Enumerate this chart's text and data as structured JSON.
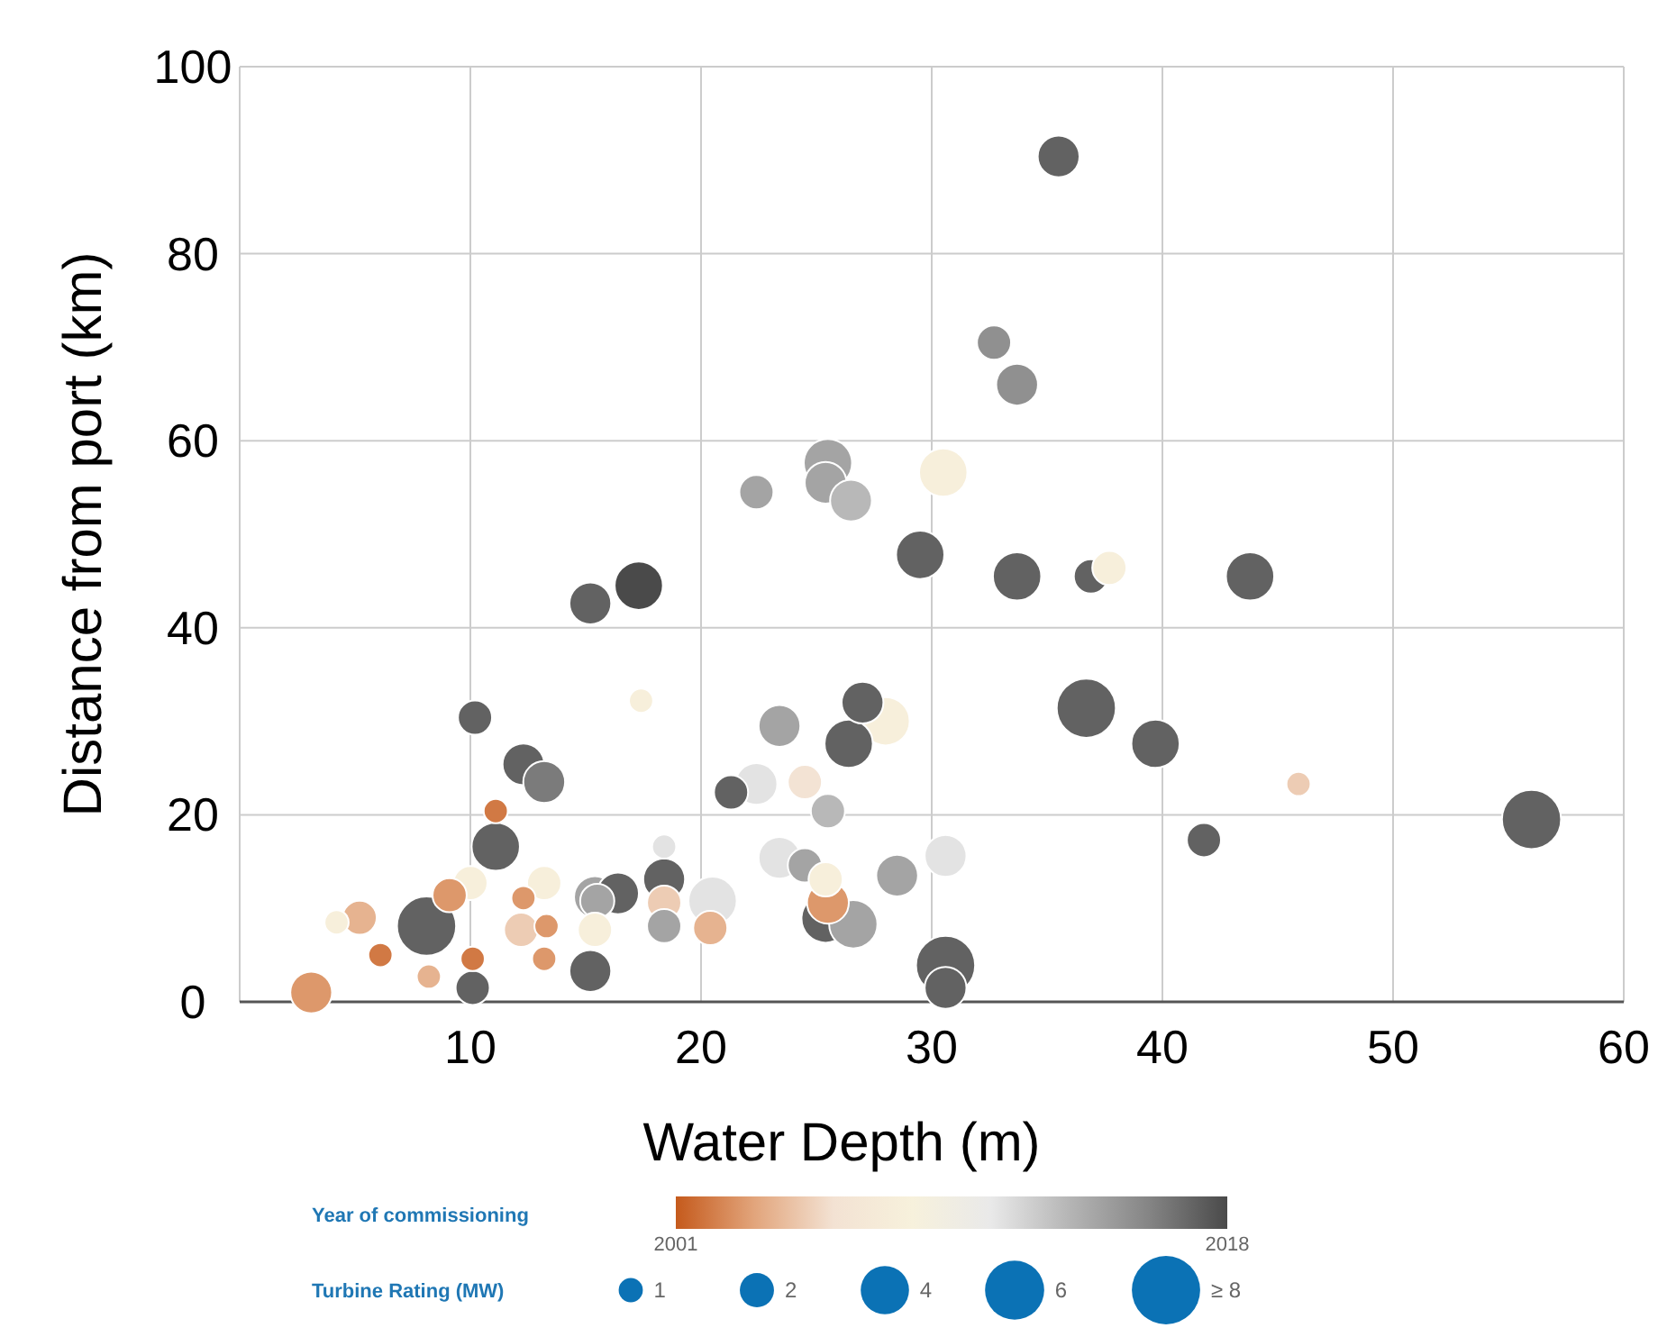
{
  "chart_data": {
    "type": "bubble",
    "xlabel": "Water Depth (m)",
    "ylabel": "Distance from port (km)",
    "clabel": "Year of commissioning",
    "legend_title": "Turbine Rating (MW)",
    "xlim": [
      0,
      60
    ],
    "xticks": [
      {
        "value": 0,
        "label": null
      },
      10,
      20,
      30,
      40,
      50,
      60
    ],
    "ylim": [
      0,
      100
    ],
    "yticks": [
      0,
      20,
      40,
      60,
      80,
      100
    ],
    "grid": true,
    "clim": [
      2001,
      2018
    ],
    "cticks": [
      2001,
      2018
    ],
    "size_legend": [
      1,
      2,
      4,
      6,
      {
        "value": 8,
        "label": "≥ 8"
      }
    ],
    "x": [
      35.5,
      32.7,
      33.7,
      25.5,
      25.4,
      22.4,
      26.5,
      30.5,
      29.5,
      33.7,
      36.9,
      37.7,
      43.8,
      17.3,
      15.2,
      17.4,
      10.2,
      12.3,
      13.2,
      11.1,
      11.1,
      10.0,
      9.1,
      4.2,
      5.2,
      8.1,
      6.1,
      8.2,
      10.1,
      10.1,
      3.1,
      13.2,
      12.3,
      13.3,
      12.2,
      13.2,
      15.5,
      15.4,
      15.2,
      23.4,
      28.0,
      26.4,
      27.0,
      21.3,
      22.4,
      24.5,
      25.5,
      18.4,
      23.4,
      24.5,
      28.5,
      30.6,
      16.4,
      18.4,
      18.4,
      18.4,
      20.5,
      20.4,
      15.4,
      25.4,
      25.5,
      25.4,
      26.6,
      30.6,
      30.6,
      36.7,
      39.7,
      45.9,
      41.8,
      56.0
    ],
    "values": [
      90.4,
      70.5,
      66,
      57.6,
      55.5,
      54.5,
      53.6,
      56.6,
      47.8,
      45.5,
      45.5,
      46.4,
      45.5,
      44.5,
      42.6,
      32.2,
      30.4,
      25.4,
      23.5,
      20.4,
      16.6,
      12.7,
      11.4,
      8.5,
      9.0,
      8.1,
      5.0,
      2.7,
      4.6,
      1.5,
      1.0,
      12.7,
      11.1,
      8.1,
      7.7,
      4.6,
      10.8,
      11.2,
      3.3,
      29.5,
      30.0,
      27.6,
      32.0,
      22.4,
      23.3,
      23.5,
      20.4,
      16.6,
      15.4,
      14.6,
      13.5,
      15.6,
      11.6,
      13.1,
      10.6,
      8.1,
      10.8,
      7.9,
      7.7,
      13.1,
      10.6,
      8.9,
      8.3,
      3.9,
      1.5,
      31.4,
      27.6,
      23.3,
      17.3,
      19.5
    ],
    "sizes": [
      3,
      2,
      3,
      4,
      3,
      2,
      3,
      4,
      4,
      4,
      2,
      2,
      4,
      4,
      3,
      1,
      2,
      3,
      3,
      1,
      4,
      2,
      2,
      1,
      2,
      6,
      1,
      1,
      1,
      2,
      3,
      2,
      1,
      1,
      2,
      1,
      2,
      3,
      3,
      3,
      4,
      4,
      3,
      2,
      3,
      2,
      2,
      1,
      3,
      2,
      3,
      3,
      3,
      3,
      2,
      2,
      4,
      2,
      2,
      2,
      3,
      4,
      4,
      6,
      3,
      6,
      4,
      1,
      2,
      6
    ],
    "cvalues": [
      2017,
      2015,
      2015,
      2014,
      2014,
      2014,
      2013,
      2008,
      2017,
      2017,
      2017,
      2008,
      2017,
      2018,
      2017,
      2008,
      2017,
      2017,
      2016,
      2002,
      2017,
      2008,
      2003,
      2008,
      2004,
      2017,
      2002,
      2004,
      2002,
      2017,
      2003,
      2008,
      2003,
      2003,
      2005,
      2003,
      2014,
      2014,
      2017,
      2014,
      2008,
      2017,
      2017,
      2017,
      2011,
      2006,
      2013,
      2011,
      2011,
      2014,
      2014,
      2011,
      2017,
      2017,
      2005,
      2014,
      2011,
      2004,
      2008,
      2008,
      2003,
      2017,
      2014,
      2017,
      2017,
      2017,
      2017,
      2005,
      2017,
      2017
    ]
  }
}
